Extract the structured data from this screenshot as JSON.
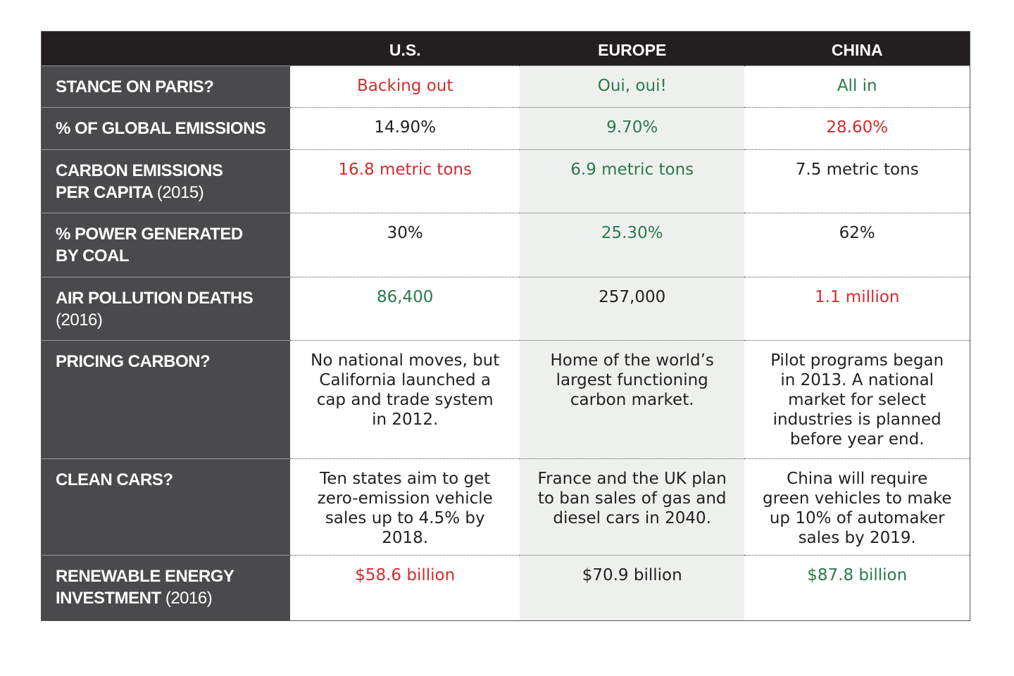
{
  "table": {
    "columns": [
      "U.S.",
      "EUROPE",
      "CHINA"
    ],
    "rows": [
      {
        "label_lines": [
          "STANCE ON PARIS?"
        ],
        "cells": [
          {
            "text": "Backing out",
            "color": "#d42b2b"
          },
          {
            "text": "Oui, oui!",
            "color": "#2a7a4b"
          },
          {
            "text": "All in",
            "color": "#2a7a4b"
          }
        ]
      },
      {
        "label_lines": [
          "% OF GLOBAL EMISSIONS"
        ],
        "cells": [
          {
            "text": "14.90%",
            "color": "#231f20"
          },
          {
            "text": "9.70%",
            "color": "#2a7a4b"
          },
          {
            "text": "28.60%",
            "color": "#d42b2b"
          }
        ]
      },
      {
        "label_lines": [
          "CARBON EMISSIONS",
          "PER CAPITA"
        ],
        "note": "(2015)",
        "cells": [
          {
            "text": "16.8  metric tons",
            "color": "#d42b2b"
          },
          {
            "text": "6.9 metric tons",
            "color": "#2a7a4b"
          },
          {
            "text": "7.5  metric tons",
            "color": "#231f20"
          }
        ]
      },
      {
        "label_lines": [
          "% POWER GENERATED",
          "BY COAL"
        ],
        "cells": [
          {
            "text": "30%",
            "color": "#231f20"
          },
          {
            "text": "25.30%",
            "color": "#2a7a4b"
          },
          {
            "text": "62%",
            "color": "#231f20"
          }
        ]
      },
      {
        "label_lines": [
          "AIR POLLUTION DEATHS"
        ],
        "note": "(2016)",
        "cells": [
          {
            "text": "86,400",
            "color": "#2a7a4b"
          },
          {
            "text": "257,000",
            "color": "#231f20"
          },
          {
            "text": "1.1 million",
            "color": "#d42b2b"
          }
        ]
      },
      {
        "label_lines": [
          "PRICING CARBON?"
        ],
        "cells": [
          {
            "text": "No national moves, but California launched a cap and trade system in 2012.",
            "color": "#231f20"
          },
          {
            "text": "Home of the world’s largest functioning carbon market.",
            "color": "#231f20"
          },
          {
            "text": "Pilot programs began in 2013. A national market for select industries is planned before year end.",
            "color": "#231f20"
          }
        ]
      },
      {
        "label_lines": [
          "CLEAN CARS?"
        ],
        "cells": [
          {
            "text": "Ten states aim to get zero-emission vehicle sales up to 4.5% by 2018.",
            "color": "#231f20"
          },
          {
            "text": "France and the UK plan to ban sales of gas and diesel cars in 2040.",
            "color": "#231f20"
          },
          {
            "text": "China will require green vehicles to make up 10% of automaker sales by 2019.",
            "color": "#231f20"
          }
        ]
      },
      {
        "label_lines": [
          "RENEWABLE ENERGY",
          "INVESTMENT"
        ],
        "note": "(2016)",
        "cells": [
          {
            "text": "$58.6 billion",
            "color": "#d42b2b"
          },
          {
            "text": "$70.9 billion",
            "color": "#231f20"
          },
          {
            "text": "$87.8 billion",
            "color": "#2a7a4b"
          }
        ]
      }
    ]
  }
}
